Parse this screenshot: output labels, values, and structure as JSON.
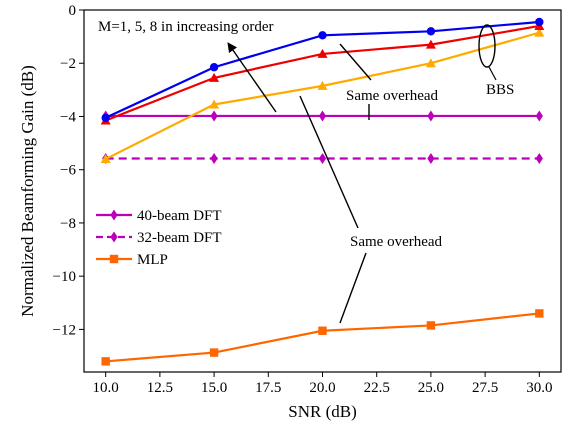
{
  "chart_data": {
    "type": "line",
    "title": "",
    "xlabel": "SNR (dB)",
    "ylabel": "Normalized Beamforming Gain (dB)",
    "xlim": [
      9.0,
      31.0
    ],
    "ylim": [
      -13.6,
      0
    ],
    "xticks": [
      10.0,
      12.5,
      15.0,
      17.5,
      20.0,
      22.5,
      25.0,
      27.5,
      30.0
    ],
    "xtick_labels": [
      "10.0",
      "12.5",
      "15.0",
      "17.5",
      "20.0",
      "22.5",
      "25.0",
      "27.5",
      "30.0"
    ],
    "yticks": [
      0,
      -2,
      -4,
      -6,
      -8,
      -10,
      -12
    ],
    "ytick_labels": [
      "0",
      "−2",
      "−4",
      "−6",
      "−8",
      "−10",
      "−12"
    ],
    "grid": false,
    "legend_position": "center-left",
    "x": [
      10,
      15,
      20,
      25,
      30
    ],
    "series": [
      {
        "name": "40-beam DFT",
        "legend": true,
        "color": "#bb00bb",
        "marker": "diamond",
        "dash": "solid",
        "values": [
          -3.98,
          -3.98,
          -3.98,
          -3.98,
          -3.98
        ]
      },
      {
        "name": "32-beam DFT",
        "legend": true,
        "color": "#bb00bb",
        "marker": "diamond",
        "dash": "dashed",
        "values": [
          -5.58,
          -5.58,
          -5.58,
          -5.58,
          -5.58
        ]
      },
      {
        "name": "MLP",
        "legend": true,
        "color": "#ff6600",
        "marker": "square",
        "dash": "solid",
        "values": [
          -13.2,
          -12.87,
          -12.05,
          -11.85,
          -11.4
        ]
      },
      {
        "name": "",
        "legend": false,
        "color": "#0000ee",
        "marker": "circle",
        "dash": "solid",
        "values": [
          -4.05,
          -2.15,
          -0.95,
          -0.8,
          -0.45
        ]
      },
      {
        "name": "",
        "legend": false,
        "color": "#ee0000",
        "marker": "triangle",
        "dash": "solid",
        "values": [
          -4.15,
          -2.55,
          -1.65,
          -1.3,
          -0.6
        ]
      },
      {
        "name": "",
        "legend": false,
        "color": "#ffaa00",
        "marker": "triangle",
        "dash": "solid",
        "values": [
          -5.6,
          -3.55,
          -2.85,
          -2.0,
          -0.85
        ]
      }
    ],
    "annotations": [
      {
        "text": "M=1, 5, 8 in increasing order"
      },
      {
        "text": "Same overhead"
      },
      {
        "text": "BBS"
      },
      {
        "text": "Same overhead"
      }
    ]
  }
}
